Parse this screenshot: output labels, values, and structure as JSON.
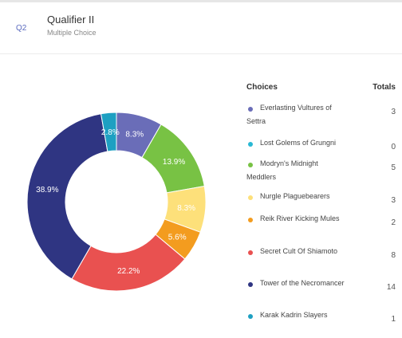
{
  "question": {
    "number": "Q2",
    "title": "Qualifier II",
    "type": "Multiple Choice"
  },
  "table": {
    "choices_header": "Choices",
    "totals_header": "Totals"
  },
  "chart_data": {
    "type": "pie",
    "style": "donut",
    "categories": [
      "Everlasting Vultures of Settra",
      "Lost Golems of Grungni",
      "Modryn's Midnight Meddlers",
      "Nurgle Plaguebearers",
      "Reik River Kicking Mules",
      "Secret Cult Of Shiamoto",
      "Tower of the Necromancer",
      "Karak Kadrin Slayers"
    ],
    "values": [
      3,
      0,
      5,
      3,
      2,
      8,
      14,
      1
    ],
    "percent_labels": [
      "8.3%",
      "",
      "13.9%",
      "8.3%",
      "5.6%",
      "22.2%",
      "38.9%",
      "2.8%"
    ],
    "colors": [
      "#6a6db8",
      "#29b8d4",
      "#78c244",
      "#fde07a",
      "#f39c1f",
      "#e95150",
      "#2f3582",
      "#1ea0c2"
    ],
    "legend": "right"
  }
}
